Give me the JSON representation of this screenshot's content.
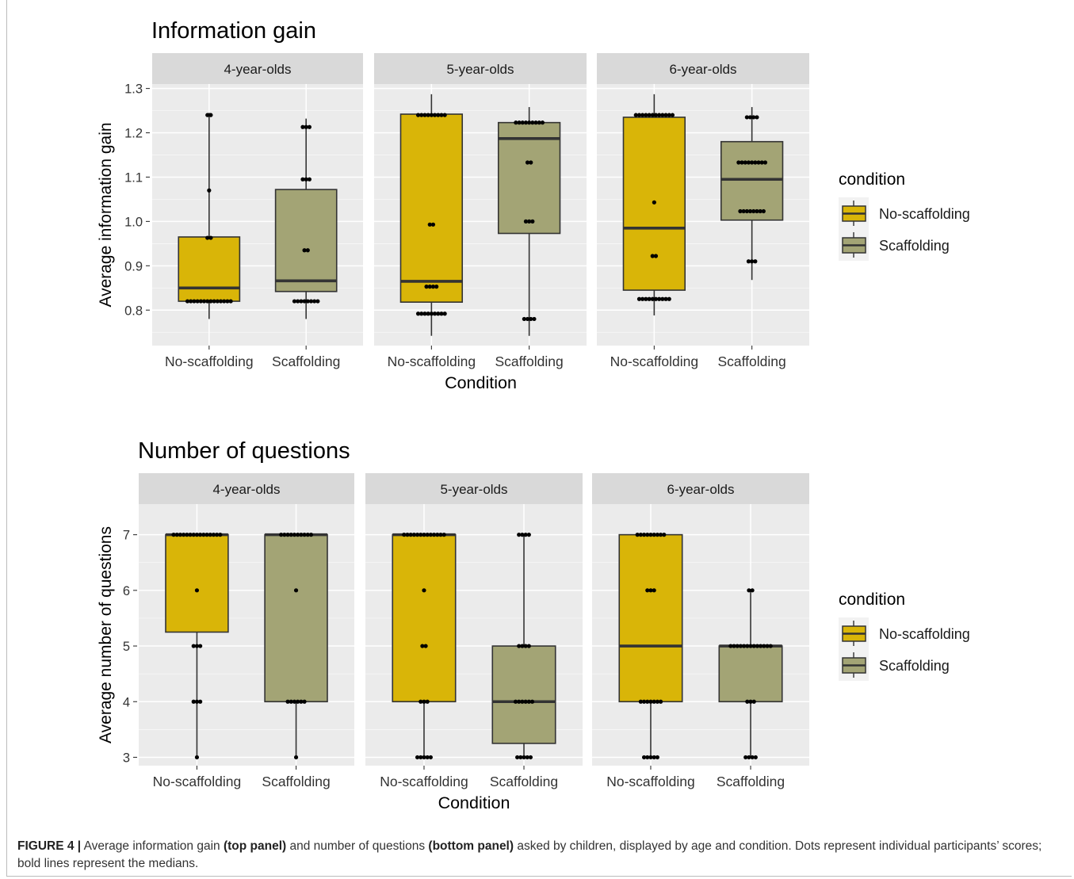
{
  "colors": {
    "no_scaffolding": "#D9B508",
    "scaffolding": "#A3A475",
    "panel_bg": "#EBEBEB",
    "strip_bg": "#D9D9D9",
    "grid": "#FFFFFF",
    "dots": "#000000"
  },
  "x_axis_title": "Condition",
  "legend": {
    "title": "condition",
    "items": [
      "No-scaffolding",
      "Scaffolding"
    ]
  },
  "caption": {
    "label": "FIGURE 4 |",
    "part1": " Average information gain ",
    "bold1": "(top panel)",
    "part2": " and number of questions ",
    "bold2": "(bottom panel)",
    "part3": " asked by children, displayed by age and condition. Dots represent individual participants’ scores; bold lines represent the medians."
  },
  "chart_data": [
    {
      "type": "boxplot",
      "title": "Information gain",
      "xlabel": "Condition",
      "ylabel": "Average information gain",
      "ylim": [
        0.72,
        1.31
      ],
      "yticks": [
        0.8,
        0.9,
        1.0,
        1.1,
        1.2,
        1.3
      ],
      "ytick_labels": [
        "0.8",
        "0.9",
        "1.0",
        "1.1",
        "1.2",
        "1.3"
      ],
      "categories": [
        "No-scaffolding",
        "Scaffolding"
      ],
      "facets": [
        {
          "label": "4-year-olds",
          "groups": [
            {
              "condition": "No-scaffolding",
              "whisker_low": 0.78,
              "q1": 0.82,
              "median": 0.85,
              "q3": 0.965,
              "whisker_high": 1.245,
              "points": [
                {
                  "y": 0.82,
                  "n": 14
                },
                {
                  "y": 0.963,
                  "n": 2
                },
                {
                  "y": 1.07,
                  "n": 1
                },
                {
                  "y": 1.24,
                  "n": 2
                }
              ]
            },
            {
              "condition": "Scaffolding",
              "whisker_low": 0.78,
              "q1": 0.842,
              "median": 0.866,
              "q3": 1.072,
              "whisker_high": 1.232,
              "points": [
                {
                  "y": 0.82,
                  "n": 8
                },
                {
                  "y": 0.935,
                  "n": 2
                },
                {
                  "y": 1.095,
                  "n": 3
                },
                {
                  "y": 1.213,
                  "n": 3
                }
              ]
            }
          ]
        },
        {
          "label": "5-year-olds",
          "groups": [
            {
              "condition": "No-scaffolding",
              "whisker_low": 0.742,
              "q1": 0.818,
              "median": 0.865,
              "q3": 1.242,
              "whisker_high": 1.287,
              "points": [
                {
                  "y": 0.792,
                  "n": 9
                },
                {
                  "y": 0.853,
                  "n": 4
                },
                {
                  "y": 0.993,
                  "n": 2
                },
                {
                  "y": 1.24,
                  "n": 9
                }
              ]
            },
            {
              "condition": "Scaffolding",
              "whisker_low": 0.742,
              "q1": 0.973,
              "median": 1.187,
              "q3": 1.223,
              "whisker_high": 1.258,
              "points": [
                {
                  "y": 0.78,
                  "n": 4
                },
                {
                  "y": 1.0,
                  "n": 3
                },
                {
                  "y": 1.133,
                  "n": 2
                },
                {
                  "y": 1.223,
                  "n": 9
                }
              ]
            }
          ]
        },
        {
          "label": "6-year-olds",
          "groups": [
            {
              "condition": "No-scaffolding",
              "whisker_low": 0.788,
              "q1": 0.845,
              "median": 0.985,
              "q3": 1.235,
              "whisker_high": 1.287,
              "points": [
                {
                  "y": 0.825,
                  "n": 10
                },
                {
                  "y": 0.922,
                  "n": 2
                },
                {
                  "y": 1.043,
                  "n": 1
                },
                {
                  "y": 1.24,
                  "n": 12
                }
              ]
            },
            {
              "condition": "Scaffolding",
              "whisker_low": 0.868,
              "q1": 1.003,
              "median": 1.095,
              "q3": 1.18,
              "whisker_high": 1.258,
              "points": [
                {
                  "y": 0.91,
                  "n": 3
                },
                {
                  "y": 1.023,
                  "n": 8
                },
                {
                  "y": 1.133,
                  "n": 9
                },
                {
                  "y": 1.235,
                  "n": 4
                }
              ]
            }
          ]
        }
      ]
    },
    {
      "type": "boxplot",
      "title": "Number of questions",
      "xlabel": "Condition",
      "ylabel": "Average number of questions",
      "ylim": [
        2.85,
        7.55
      ],
      "yticks": [
        3,
        4,
        5,
        6,
        7
      ],
      "ytick_labels": [
        "3",
        "4",
        "5",
        "6",
        "7"
      ],
      "categories": [
        "No-scaffolding",
        "Scaffolding"
      ],
      "facets": [
        {
          "label": "4-year-olds",
          "groups": [
            {
              "condition": "No-scaffolding",
              "whisker_low": 3,
              "q1": 5.25,
              "median": 7,
              "q3": 7,
              "whisker_high": 7,
              "points": [
                {
                  "y": 3,
                  "n": 1
                },
                {
                  "y": 4,
                  "n": 3
                },
                {
                  "y": 5,
                  "n": 3
                },
                {
                  "y": 6,
                  "n": 1
                },
                {
                  "y": 7,
                  "n": 15
                }
              ]
            },
            {
              "condition": "Scaffolding",
              "whisker_low": 3,
              "q1": 4,
              "median": 7,
              "q3": 7,
              "whisker_high": 7,
              "points": [
                {
                  "y": 3,
                  "n": 1
                },
                {
                  "y": 4,
                  "n": 6
                },
                {
                  "y": 6,
                  "n": 1
                },
                {
                  "y": 7,
                  "n": 10
                }
              ]
            }
          ]
        },
        {
          "label": "5-year-olds",
          "groups": [
            {
              "condition": "No-scaffolding",
              "whisker_low": 3,
              "q1": 4,
              "median": 7,
              "q3": 7,
              "whisker_high": 7,
              "points": [
                {
                  "y": 3,
                  "n": 5
                },
                {
                  "y": 4,
                  "n": 3
                },
                {
                  "y": 5,
                  "n": 2
                },
                {
                  "y": 6,
                  "n": 1
                },
                {
                  "y": 7,
                  "n": 13
                }
              ]
            },
            {
              "condition": "Scaffolding",
              "whisker_low": 3,
              "q1": 3.25,
              "median": 4,
              "q3": 5,
              "whisker_high": 7,
              "points": [
                {
                  "y": 3,
                  "n": 5
                },
                {
                  "y": 4,
                  "n": 6
                },
                {
                  "y": 5,
                  "n": 4
                },
                {
                  "y": 7,
                  "n": 4
                }
              ]
            }
          ]
        },
        {
          "label": "6-year-olds",
          "groups": [
            {
              "condition": "No-scaffolding",
              "whisker_low": 3,
              "q1": 4,
              "median": 5,
              "q3": 7,
              "whisker_high": 7,
              "points": [
                {
                  "y": 3,
                  "n": 5
                },
                {
                  "y": 4,
                  "n": 7
                },
                {
                  "y": 6,
                  "n": 3
                },
                {
                  "y": 7,
                  "n": 9
                }
              ]
            },
            {
              "condition": "Scaffolding",
              "whisker_low": 3,
              "q1": 4,
              "median": 5,
              "q3": 5,
              "whisker_high": 6,
              "points": [
                {
                  "y": 3,
                  "n": 4
                },
                {
                  "y": 4,
                  "n": 3
                },
                {
                  "y": 5,
                  "n": 13
                },
                {
                  "y": 6,
                  "n": 2
                }
              ]
            }
          ]
        }
      ]
    }
  ]
}
